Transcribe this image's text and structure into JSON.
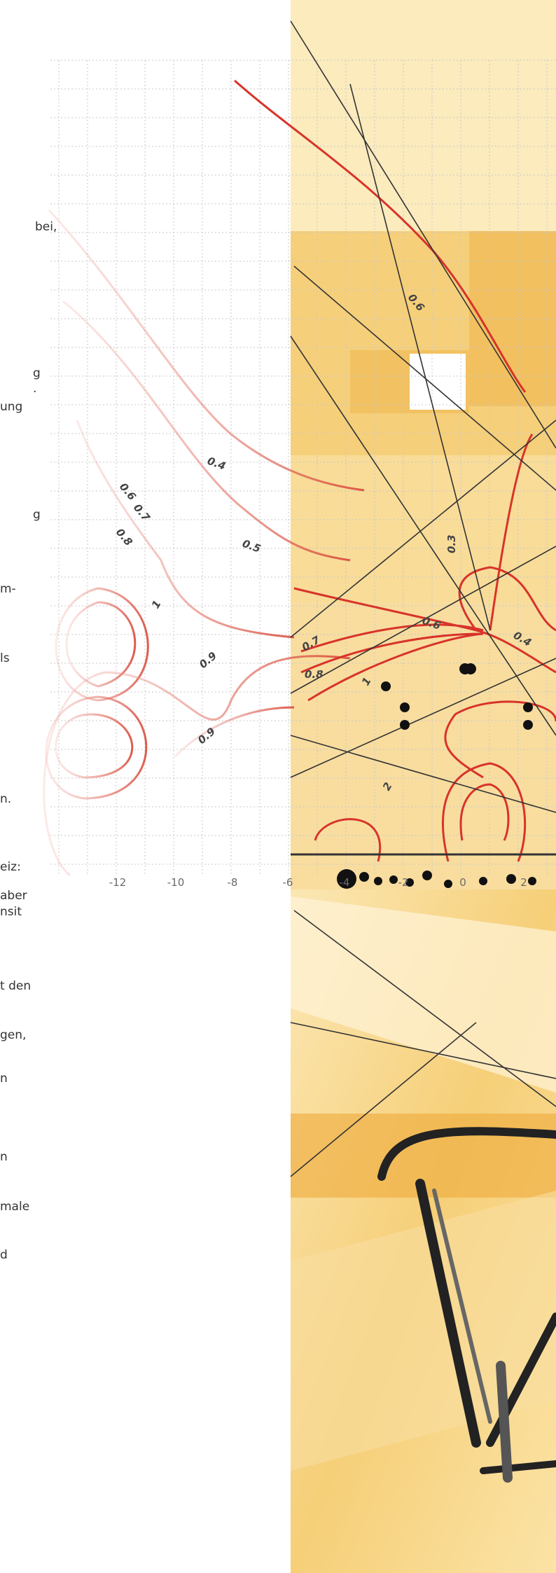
{
  "text_fragments": [
    "bei,",
    "g",
    ".",
    "ung",
    "g",
    "m-",
    "ls",
    "n.",
    "eiz:",
    "aber",
    "nsit",
    "t den",
    "gen,",
    "n",
    "n",
    "male",
    "d"
  ],
  "axis_ticks": [
    "-12",
    "-10",
    "-8",
    "-6",
    "-4",
    "-2",
    "0",
    "2"
  ],
  "contour_labels": [
    "0.4",
    "0.5",
    "0.6",
    "0.7",
    "0.8",
    "1",
    "0.9",
    "0.9",
    "0.7",
    "0.8",
    "1",
    "0.6",
    "0.4",
    "0.3",
    "2",
    "0.6"
  ]
}
